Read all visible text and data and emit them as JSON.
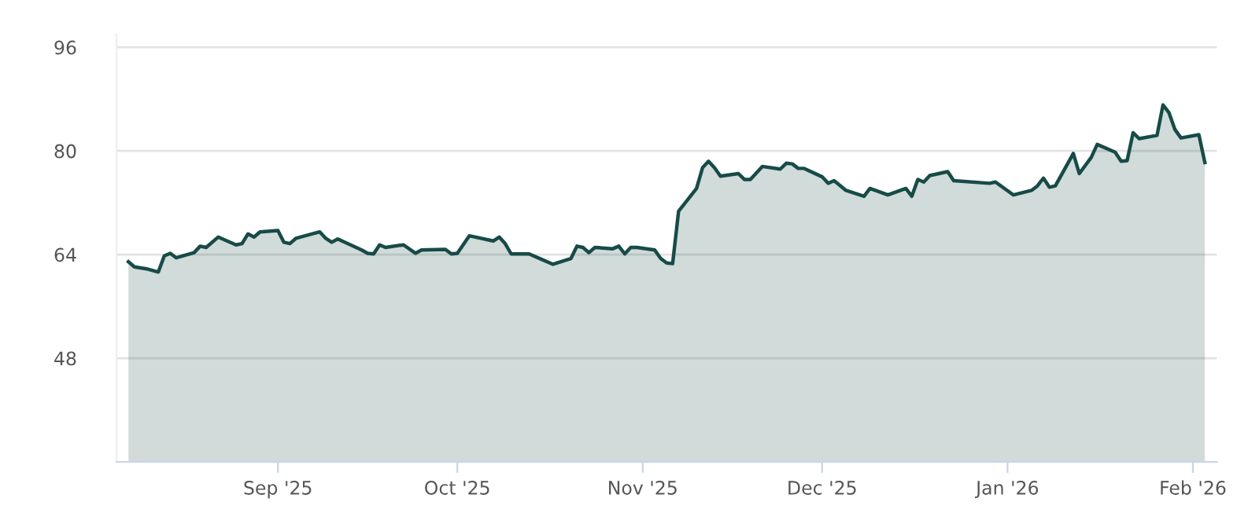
{
  "chart_data": {
    "type": "area",
    "x": [
      "2025-08-07",
      "2025-08-08",
      "2025-08-10",
      "2025-08-12",
      "2025-08-13",
      "2025-08-14",
      "2025-08-15",
      "2025-08-18",
      "2025-08-19",
      "2025-08-20",
      "2025-08-22",
      "2025-08-25",
      "2025-08-26",
      "2025-08-27",
      "2025-08-28",
      "2025-08-29",
      "2025-09-01",
      "2025-09-02",
      "2025-09-03",
      "2025-09-04",
      "2025-09-08",
      "2025-09-09",
      "2025-09-10",
      "2025-09-11",
      "2025-09-15",
      "2025-09-16",
      "2025-09-17",
      "2025-09-18",
      "2025-09-19",
      "2025-09-22",
      "2025-09-24",
      "2025-09-25",
      "2025-09-29",
      "2025-09-30",
      "2025-10-01",
      "2025-10-03",
      "2025-10-07",
      "2025-10-08",
      "2025-10-09",
      "2025-10-10",
      "2025-10-13",
      "2025-10-15",
      "2025-10-17",
      "2025-10-20",
      "2025-10-21",
      "2025-10-22",
      "2025-10-23",
      "2025-10-24",
      "2025-10-27",
      "2025-10-28",
      "2025-10-29",
      "2025-10-30",
      "2025-10-31",
      "2025-11-03",
      "2025-11-04",
      "2025-11-05",
      "2025-11-06",
      "2025-11-07",
      "2025-11-10",
      "2025-11-11",
      "2025-11-12",
      "2025-11-13",
      "2025-11-14",
      "2025-11-17",
      "2025-11-18",
      "2025-11-19",
      "2025-11-21",
      "2025-11-24",
      "2025-11-25",
      "2025-11-26",
      "2025-11-27",
      "2025-11-28",
      "2025-12-01",
      "2025-12-02",
      "2025-12-03",
      "2025-12-05",
      "2025-12-08",
      "2025-12-09",
      "2025-12-12",
      "2025-12-15",
      "2025-12-16",
      "2025-12-17",
      "2025-12-18",
      "2025-12-19",
      "2025-12-22",
      "2025-12-23",
      "2025-12-29",
      "2025-12-30",
      "2026-01-02",
      "2026-01-05",
      "2026-01-06",
      "2026-01-07",
      "2026-01-08",
      "2026-01-09",
      "2026-01-12",
      "2026-01-13",
      "2026-01-15",
      "2026-01-16",
      "2026-01-19",
      "2026-01-20",
      "2026-01-21",
      "2026-01-22",
      "2026-01-23",
      "2026-01-26",
      "2026-01-27",
      "2026-01-28",
      "2026-01-29",
      "2026-01-30",
      "2026-02-02",
      "2026-02-03"
    ],
    "series": [
      {
        "color": "#174b47",
        "values": [
          62.9,
          62.1,
          61.8,
          61.3,
          63.8,
          64.2,
          63.5,
          64.3,
          65.3,
          65.1,
          66.7,
          65.5,
          65.7,
          67.2,
          66.7,
          67.5,
          67.7,
          65.9,
          65.7,
          66.5,
          67.5,
          66.5,
          65.9,
          66.4,
          64.7,
          64.2,
          64.1,
          65.5,
          65.1,
          65.5,
          64.2,
          64.7,
          64.8,
          64.1,
          64.2,
          66.9,
          66.1,
          66.7,
          65.7,
          64.1,
          64.1,
          63.3,
          62.5,
          63.4,
          65.3,
          65.1,
          64.3,
          65.1,
          64.9,
          65.3,
          64.1,
          65.1,
          65.1,
          64.7,
          63.4,
          62.7,
          62.6,
          70.7,
          74.2,
          77.4,
          78.4,
          77.4,
          76.1,
          76.5,
          75.6,
          75.6,
          77.6,
          77.2,
          78.1,
          78.0,
          77.3,
          77.3,
          76.0,
          75.0,
          75.4,
          73.9,
          73.0,
          74.2,
          73.2,
          74.2,
          73.0,
          75.6,
          75.2,
          76.2,
          76.8,
          75.4,
          75.0,
          75.2,
          73.2,
          73.9,
          74.6,
          75.8,
          74.4,
          74.6,
          79.6,
          76.5,
          79.0,
          81.0,
          79.8,
          78.4,
          78.5,
          82.8,
          81.9,
          82.4,
          87.1,
          85.9,
          83.3,
          82.0,
          82.5,
          78.2
        ]
      }
    ],
    "xlim": [
      "2025-08-05",
      "2026-02-05"
    ],
    "xticks": [
      {
        "value": "2025-09-01",
        "label": "Sep '25"
      },
      {
        "value": "2025-10-01",
        "label": "Oct '25"
      },
      {
        "value": "2025-11-01",
        "label": "Nov '25"
      },
      {
        "value": "2025-12-01",
        "label": "Dec '25"
      },
      {
        "value": "2026-01-01",
        "label": "Jan '26"
      },
      {
        "value": "2026-02-01",
        "label": "Feb '26"
      }
    ],
    "ylim": [
      32,
      98
    ],
    "yticks": [
      48,
      64,
      80,
      96
    ],
    "grid": "y"
  }
}
